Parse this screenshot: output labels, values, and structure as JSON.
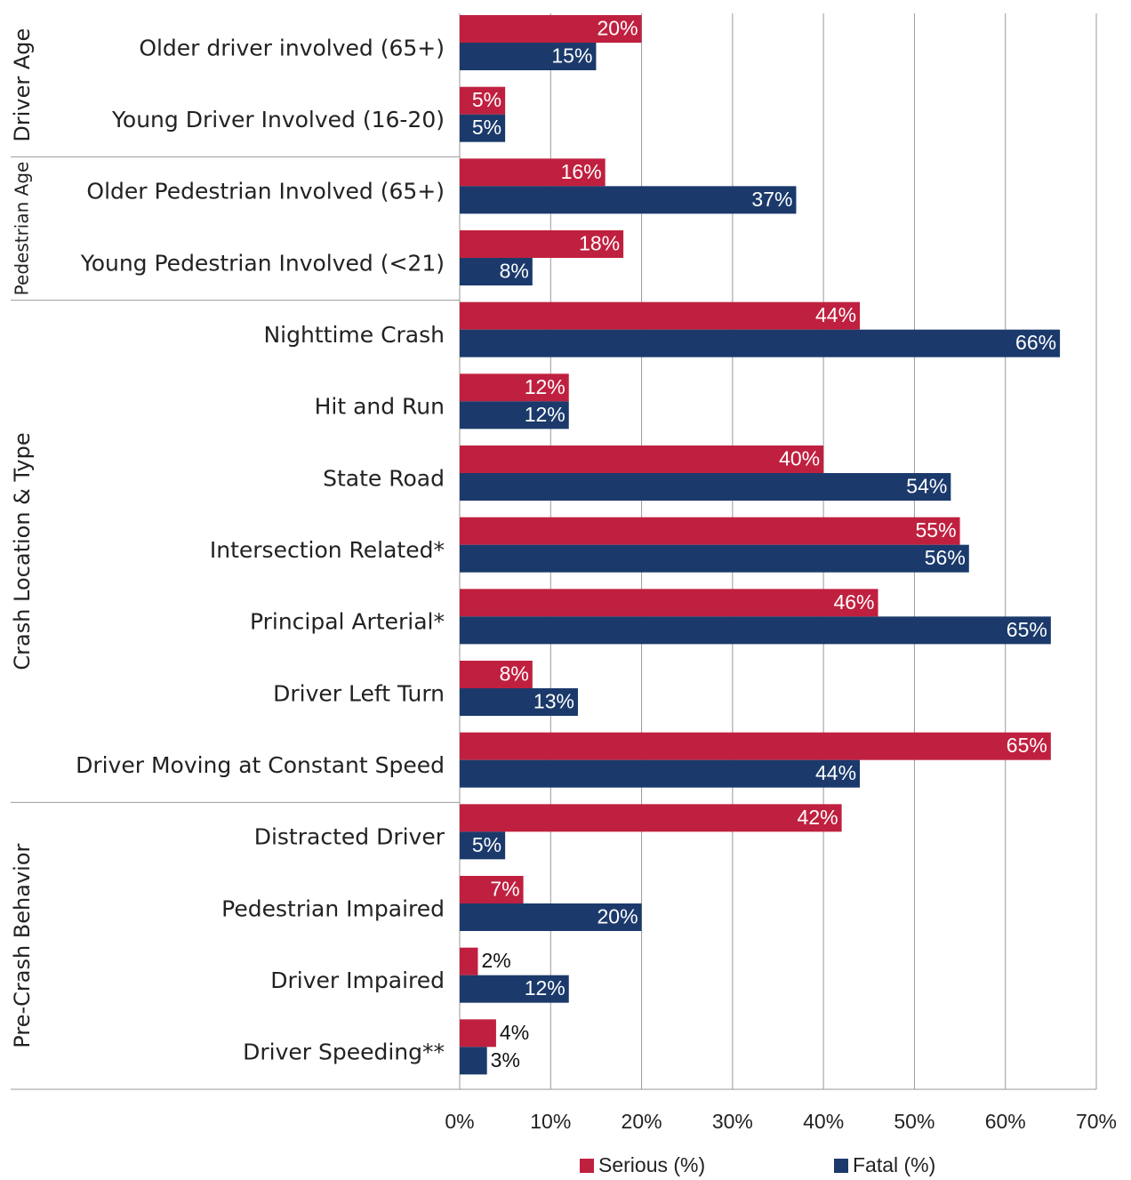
{
  "chart_data": {
    "type": "grouped-hbar",
    "groups": [
      {
        "name": "Driver Age",
        "categories": [
          "Older driver involved (65+)",
          "Young Driver Involved (16-20)"
        ]
      },
      {
        "name": "Pedestrian Age",
        "categories": [
          "Older Pedestrian Involved (65+)",
          "Young Pedestrian Involved (<21)"
        ]
      },
      {
        "name": "Crash Location & Type",
        "categories": [
          "Nighttime Crash",
          "Hit and Run",
          "State Road",
          "Intersection Related*",
          "Principal Arterial*",
          "Driver Left Turn",
          "Driver Moving at Constant Speed"
        ]
      },
      {
        "name": "Pre-Crash Behavior",
        "categories": [
          "Distracted Driver",
          "Pedestrian Impaired",
          "Driver Impaired",
          "Driver Speeding**"
        ]
      }
    ],
    "series": [
      {
        "name": "Serious (%)",
        "color": "#c0203f",
        "values": [
          20,
          5,
          16,
          18,
          44,
          12,
          40,
          55,
          46,
          8,
          65,
          42,
          7,
          2,
          4
        ],
        "value_labels": [
          "20%",
          "5%",
          "16%",
          "18%",
          "44%",
          "12%",
          "40%",
          "55%",
          "46%",
          "8%",
          "65%",
          "42%",
          "7%",
          "2%",
          "4%"
        ]
      },
      {
        "name": "Fatal (%)",
        "color": "#1b3a6b",
        "values": [
          15,
          5,
          37,
          8,
          66,
          12,
          54,
          56,
          65,
          13,
          44,
          5,
          20,
          12,
          3
        ],
        "value_labels": [
          "15%",
          "5%",
          "37%",
          "8%",
          "66%",
          "12%",
          "54%",
          "56%",
          "65%",
          "13%",
          "44%",
          "5%",
          "20%",
          "12%",
          "3%"
        ]
      }
    ],
    "xlim": [
      0,
      70
    ],
    "xticks": [
      {
        "value": 0,
        "label": "0%"
      },
      {
        "value": 10,
        "label": "10%"
      },
      {
        "value": 20,
        "label": "20%"
      },
      {
        "value": 30,
        "label": "30%"
      },
      {
        "value": 40,
        "label": "40%"
      },
      {
        "value": 50,
        "label": "50%"
      },
      {
        "value": 60,
        "label": "60%"
      },
      {
        "value": 70,
        "label": "70%"
      }
    ],
    "grid": true,
    "legend": "bottom"
  }
}
